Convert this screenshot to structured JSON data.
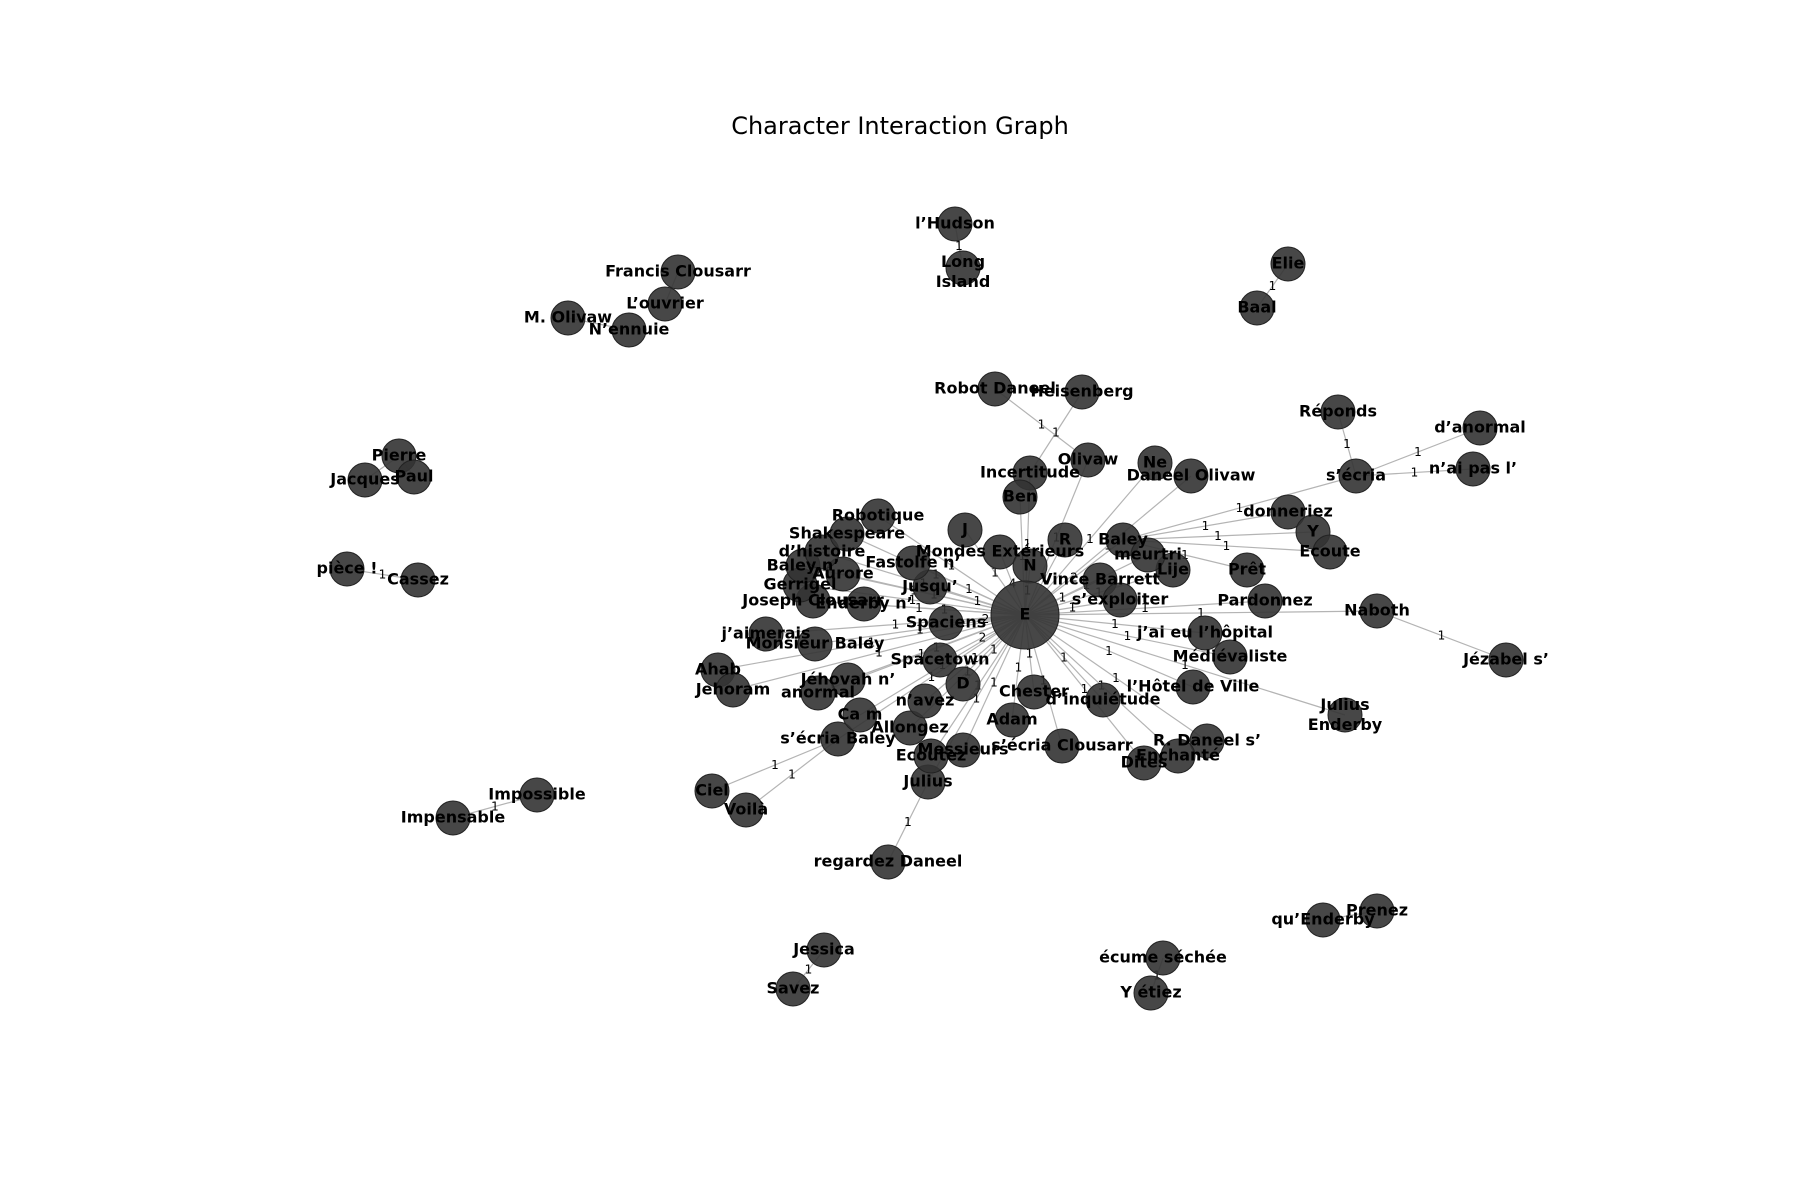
{
  "title": "Character Interaction Graph",
  "colors": {
    "node": "#333333",
    "edge": "#b4b4b4",
    "label": "#000000"
  },
  "graph": {
    "nodes": [
      {
        "id": "lhudson",
        "label": "l’Hudson"
      },
      {
        "id": "long_island",
        "label": "Long Island"
      },
      {
        "id": "elie",
        "label": "Elie"
      },
      {
        "id": "baal",
        "label": "Baal"
      },
      {
        "id": "francis",
        "label": "Francis Clousarr"
      },
      {
        "id": "louvrier",
        "label": "L’ouvrier"
      },
      {
        "id": "molivaw",
        "label": "M. Olivaw"
      },
      {
        "id": "nennuie",
        "label": "N’ennuie"
      },
      {
        "id": "pierre",
        "label": "Pierre"
      },
      {
        "id": "paul",
        "label": "Paul"
      },
      {
        "id": "jacques",
        "label": "Jacques"
      },
      {
        "id": "piece",
        "label": "pièce !"
      },
      {
        "id": "cassez",
        "label": "Cassez"
      },
      {
        "id": "robot_daneel",
        "label": "Robot Daneel"
      },
      {
        "id": "heisenberg",
        "label": "Heisenberg"
      },
      {
        "id": "olivaw",
        "label": "Olivaw"
      },
      {
        "id": "incertitude",
        "label": "Incertitude"
      },
      {
        "id": "ne",
        "label": "Ne"
      },
      {
        "id": "daneel_olivaw",
        "label": "Daneel Olivaw"
      },
      {
        "id": "reponds",
        "label": "Réponds"
      },
      {
        "id": "danormal",
        "label": "d’anormal"
      },
      {
        "id": "secria",
        "label": "s’écria"
      },
      {
        "id": "naipas",
        "label": "n’ai pas l’"
      },
      {
        "id": "donneriez",
        "label": "donneriez"
      },
      {
        "id": "y",
        "label": "Y"
      },
      {
        "id": "ecoute",
        "label": "Ecoute"
      },
      {
        "id": "pret",
        "label": "Prêt"
      },
      {
        "id": "pardonnez",
        "label": "Pardonnez"
      },
      {
        "id": "naboth",
        "label": "Naboth"
      },
      {
        "id": "jezabel",
        "label": "Jézabel s’"
      },
      {
        "id": "julius_enderby",
        "label": "Julius Enderby"
      },
      {
        "id": "ahab",
        "label": "Ahab"
      },
      {
        "id": "jehoram",
        "label": "Jehoram"
      },
      {
        "id": "jaimerais",
        "label": "j’aimerais"
      },
      {
        "id": "monsieur_baley",
        "label": "Monsieur Baley"
      },
      {
        "id": "jehovah",
        "label": "Jéhovah n’"
      },
      {
        "id": "anormal",
        "label": "anormal"
      },
      {
        "id": "secria_baley",
        "label": "s’écria Baley"
      },
      {
        "id": "ciel",
        "label": "Ciel"
      },
      {
        "id": "voila",
        "label": "Voilà"
      },
      {
        "id": "impossible",
        "label": "Impossible"
      },
      {
        "id": "impensable",
        "label": "Impensable"
      },
      {
        "id": "julius",
        "label": "Julius"
      },
      {
        "id": "regardez",
        "label": "regardez Daneel"
      },
      {
        "id": "jessica",
        "label": "Jessica"
      },
      {
        "id": "savez",
        "label": "Savez"
      },
      {
        "id": "ecume",
        "label": "écume séchée"
      },
      {
        "id": "yetiez",
        "label": "Y étiez"
      },
      {
        "id": "quenderby",
        "label": "qu’Enderby"
      },
      {
        "id": "prenez",
        "label": "Prenez"
      },
      {
        "id": "r_daneel",
        "label": "R. Daneel s’"
      },
      {
        "id": "enchante",
        "label": "Enchanté"
      },
      {
        "id": "dites",
        "label": "Dites"
      },
      {
        "id": "dinquietude",
        "label": "d’inquiétude"
      },
      {
        "id": "hotel_ville",
        "label": "l’Hôtel de Ville"
      },
      {
        "id": "medievaliste",
        "label": "Médiévaliste"
      },
      {
        "id": "hopital",
        "label": "j’ai eu l’hôpital"
      },
      {
        "id": "secria_clousarr",
        "label": "s’écria Clousarr"
      },
      {
        "id": "adam",
        "label": "Adam"
      },
      {
        "id": "chester",
        "label": "Chester"
      },
      {
        "id": "ecoutez",
        "label": "Ecoutez"
      },
      {
        "id": "messieurs",
        "label": "Messieurs"
      },
      {
        "id": "lallongez",
        "label": "Allongez"
      },
      {
        "id": "navez",
        "label": "n’avez"
      },
      {
        "id": "ca_m",
        "label": "Ca m"
      },
      {
        "id": "spacetown",
        "label": "Spacetown"
      },
      {
        "id": "spaciens",
        "label": "Spaciens"
      },
      {
        "id": "d_node",
        "label": "D"
      },
      {
        "id": "jusqu",
        "label": "Jusqu’"
      },
      {
        "id": "enderby_n",
        "label": "Enderby n’"
      },
      {
        "id": "joseph",
        "label": "Joseph Clousarr"
      },
      {
        "id": "gerrigel",
        "label": "Gerrigel"
      },
      {
        "id": "baley_n",
        "label": "Baley n’"
      },
      {
        "id": "aurore",
        "label": "Aurore"
      },
      {
        "id": "fastolfe",
        "label": "Fastolfe n’"
      },
      {
        "id": "dhistoire",
        "label": "d’histoire"
      },
      {
        "id": "shakespeare",
        "label": "Shakespeare"
      },
      {
        "id": "robotique",
        "label": "Robotique"
      },
      {
        "id": "mondes_ext",
        "label": "Mondes Extérieurs"
      },
      {
        "id": "baley",
        "label": "Baley"
      },
      {
        "id": "lije",
        "label": "Lije"
      },
      {
        "id": "meurtri",
        "label": "meurtri"
      },
      {
        "id": "barrett",
        "label": "Vince Barrett"
      },
      {
        "id": "exploiter",
        "label": "s’exploiter"
      },
      {
        "id": "ben",
        "label": "Ben"
      },
      {
        "id": "n_node",
        "label": "N"
      },
      {
        "id": "r_node",
        "label": "R"
      },
      {
        "id": "j_node",
        "label": "J"
      },
      {
        "id": "hub",
        "label": "E"
      }
    ],
    "edges": [
      {
        "source": "lhudson",
        "target": "long_island",
        "weight": "1"
      },
      {
        "source": "elie",
        "target": "baal",
        "weight": "1"
      },
      {
        "source": "francis",
        "target": "louvrier",
        "weight": ""
      },
      {
        "source": "molivaw",
        "target": "nennuie",
        "weight": ""
      },
      {
        "source": "pierre",
        "target": "paul",
        "weight": ""
      },
      {
        "source": "pierre",
        "target": "jacques",
        "weight": ""
      },
      {
        "source": "piece",
        "target": "cassez",
        "weight": "1"
      },
      {
        "source": "impossible",
        "target": "impensable",
        "weight": "1"
      },
      {
        "source": "jessica",
        "target": "savez",
        "weight": "1"
      },
      {
        "source": "ecume",
        "target": "yetiez",
        "weight": "1"
      },
      {
        "source": "quenderby",
        "target": "prenez",
        "weight": ""
      },
      {
        "source": "robot_daneel",
        "target": "olivaw",
        "weight": "1"
      },
      {
        "source": "heisenberg",
        "target": "incertitude",
        "weight": "1"
      },
      {
        "source": "olivaw",
        "target": "hub",
        "weight": "1"
      },
      {
        "source": "ne",
        "target": "hub",
        "weight": "1"
      },
      {
        "source": "daneel_olivaw",
        "target": "hub",
        "weight": "1"
      },
      {
        "source": "reponds",
        "target": "secria",
        "weight": "1"
      },
      {
        "source": "danormal",
        "target": "secria",
        "weight": "1"
      },
      {
        "source": "naipas",
        "target": "secria",
        "weight": "1"
      },
      {
        "source": "secria",
        "target": "baley",
        "weight": "1"
      },
      {
        "source": "donneriez",
        "target": "baley",
        "weight": "1"
      },
      {
        "source": "y",
        "target": "baley",
        "weight": "1"
      },
      {
        "source": "ecoute",
        "target": "baley",
        "weight": "1"
      },
      {
        "source": "pret",
        "target": "baley",
        "weight": "1"
      },
      {
        "source": "pardonnez",
        "target": "hub",
        "weight": "1"
      },
      {
        "source": "naboth",
        "target": "jezabel",
        "weight": "1"
      },
      {
        "source": "naboth",
        "target": "hub",
        "weight": "1"
      },
      {
        "source": "julius_enderby",
        "target": "hub",
        "weight": "1"
      },
      {
        "source": "ahab",
        "target": "jehoram",
        "weight": ""
      },
      {
        "source": "ahab",
        "target": "hub",
        "weight": "1"
      },
      {
        "source": "jehoram",
        "target": "hub",
        "weight": "1"
      },
      {
        "source": "jaimerais",
        "target": "hub",
        "weight": "1"
      },
      {
        "source": "monsieur_baley",
        "target": "hub",
        "weight": "1"
      },
      {
        "source": "jehovah",
        "target": "hub",
        "weight": "1"
      },
      {
        "source": "anormal",
        "target": "hub",
        "weight": "1"
      },
      {
        "source": "ciel",
        "target": "secria_baley",
        "weight": "1"
      },
      {
        "source": "voila",
        "target": "secria_baley",
        "weight": "1"
      },
      {
        "source": "secria_baley",
        "target": "hub",
        "weight": "1"
      },
      {
        "source": "julius",
        "target": "regardez",
        "weight": "1"
      },
      {
        "source": "julius",
        "target": "hub",
        "weight": "1"
      },
      {
        "source": "r_daneel",
        "target": "hub",
        "weight": "1"
      },
      {
        "source": "enchante",
        "target": "hub",
        "weight": "1"
      },
      {
        "source": "dites",
        "target": "hub",
        "weight": "1"
      },
      {
        "source": "dinquietude",
        "target": "hub",
        "weight": "1"
      },
      {
        "source": "hotel_ville",
        "target": "hub",
        "weight": "1"
      },
      {
        "source": "medievaliste",
        "target": "hub",
        "weight": "1"
      },
      {
        "source": "hopital",
        "target": "hub",
        "weight": "1"
      },
      {
        "source": "secria_clousarr",
        "target": "hub",
        "weight": "1"
      },
      {
        "source": "adam",
        "target": "hub",
        "weight": "1"
      },
      {
        "source": "chester",
        "target": "hub",
        "weight": "1"
      },
      {
        "source": "ecoutez",
        "target": "hub",
        "weight": "1"
      },
      {
        "source": "messieurs",
        "target": "hub",
        "weight": "1"
      },
      {
        "source": "lallongez",
        "target": "hub",
        "weight": "1"
      },
      {
        "source": "navez",
        "target": "hub",
        "weight": "1"
      },
      {
        "source": "ca_m",
        "target": "hub",
        "weight": "1"
      },
      {
        "source": "spacetown",
        "target": "hub",
        "weight": "2"
      },
      {
        "source": "spaciens",
        "target": "hub",
        "weight": "2"
      },
      {
        "source": "d_node",
        "target": "hub",
        "weight": "1"
      },
      {
        "source": "jusqu",
        "target": "hub",
        "weight": "1"
      },
      {
        "source": "enderby_n",
        "target": "hub",
        "weight": "1"
      },
      {
        "source": "joseph",
        "target": "hub",
        "weight": "1"
      },
      {
        "source": "gerrigel",
        "target": "hub",
        "weight": "1"
      },
      {
        "source": "baley_n",
        "target": "hub",
        "weight": "1"
      },
      {
        "source": "aurore",
        "target": "hub",
        "weight": "1"
      },
      {
        "source": "fastolfe",
        "target": "hub",
        "weight": "1"
      },
      {
        "source": "dhistoire",
        "target": "hub",
        "weight": "1"
      },
      {
        "source": "shakespeare",
        "target": "hub",
        "weight": "1"
      },
      {
        "source": "robotique",
        "target": "hub",
        "weight": "1"
      },
      {
        "source": "mondes_ext",
        "target": "hub",
        "weight": "4"
      },
      {
        "source": "baley",
        "target": "hub",
        "weight": "2"
      },
      {
        "source": "lije",
        "target": "hub",
        "weight": "1"
      },
      {
        "source": "meurtri",
        "target": "hub",
        "weight": "1"
      },
      {
        "source": "barrett",
        "target": "hub",
        "weight": "1"
      },
      {
        "source": "exploiter",
        "target": "hub",
        "weight": "1"
      },
      {
        "source": "ben",
        "target": "hub",
        "weight": "1"
      },
      {
        "source": "n_node",
        "target": "hub",
        "weight": "1"
      },
      {
        "source": "r_node",
        "target": "hub",
        "weight": "1"
      },
      {
        "source": "j_node",
        "target": "hub",
        "weight": "1"
      },
      {
        "source": "incertitude",
        "target": "hub",
        "weight": "1"
      }
    ]
  }
}
